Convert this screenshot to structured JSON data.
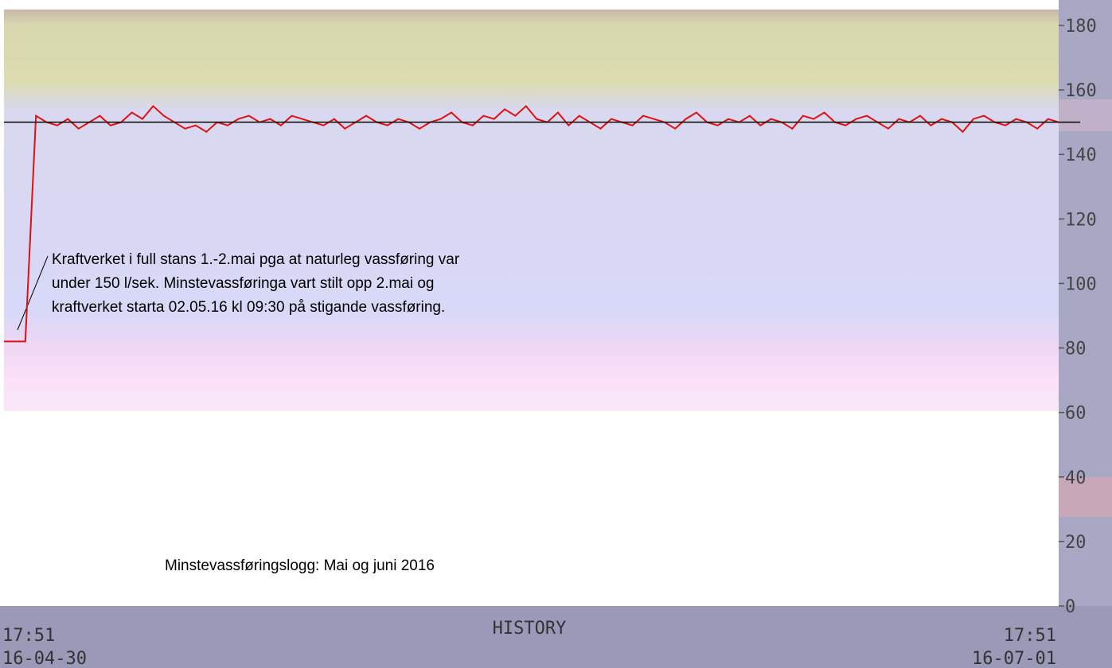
{
  "chart_data": {
    "type": "line",
    "values": [
      82,
      82,
      82,
      152,
      150,
      149,
      151,
      148,
      150,
      152,
      149,
      150,
      153,
      151,
      155,
      152,
      150,
      148,
      149,
      147,
      150,
      149,
      151,
      152,
      150,
      151,
      149,
      152,
      151,
      150,
      149,
      151,
      148,
      150,
      152,
      150,
      149,
      151,
      150,
      148,
      150,
      151,
      153,
      150,
      149,
      152,
      151,
      154,
      152,
      155,
      151,
      150,
      153,
      149,
      152,
      150,
      148,
      151,
      150,
      149,
      152,
      151,
      150,
      148,
      151,
      153,
      150,
      149,
      151,
      150,
      152,
      149,
      151,
      150,
      148,
      152,
      151,
      153,
      150,
      149,
      151,
      152,
      150,
      148,
      151,
      150,
      152,
      149,
      151,
      150,
      147,
      151,
      152,
      150,
      149,
      151,
      150,
      148,
      151,
      150
    ],
    "color": "#e01010",
    "reference_line": 150,
    "ylim": [
      0,
      180
    ],
    "yticks": [
      0,
      20,
      40,
      60,
      80,
      100,
      120,
      140,
      160,
      180
    ],
    "annotation": [
      "Kraftverket i full stans 1.-2.mai pga at naturleg vassføring var",
      "under 150 l/sek.  Minstevassføringa vart stilt opp 2.mai og",
      "kraftverket starta 02.05.16  kl 09:30 på stigande vassføring."
    ],
    "caption": "Minstevassføringslogg: Mai og juni 2016",
    "footer": {
      "title": "HISTORY",
      "start_time": "17:51",
      "start_date": "16-04-30",
      "end_time": "17:51",
      "end_date": "16-07-01"
    }
  }
}
